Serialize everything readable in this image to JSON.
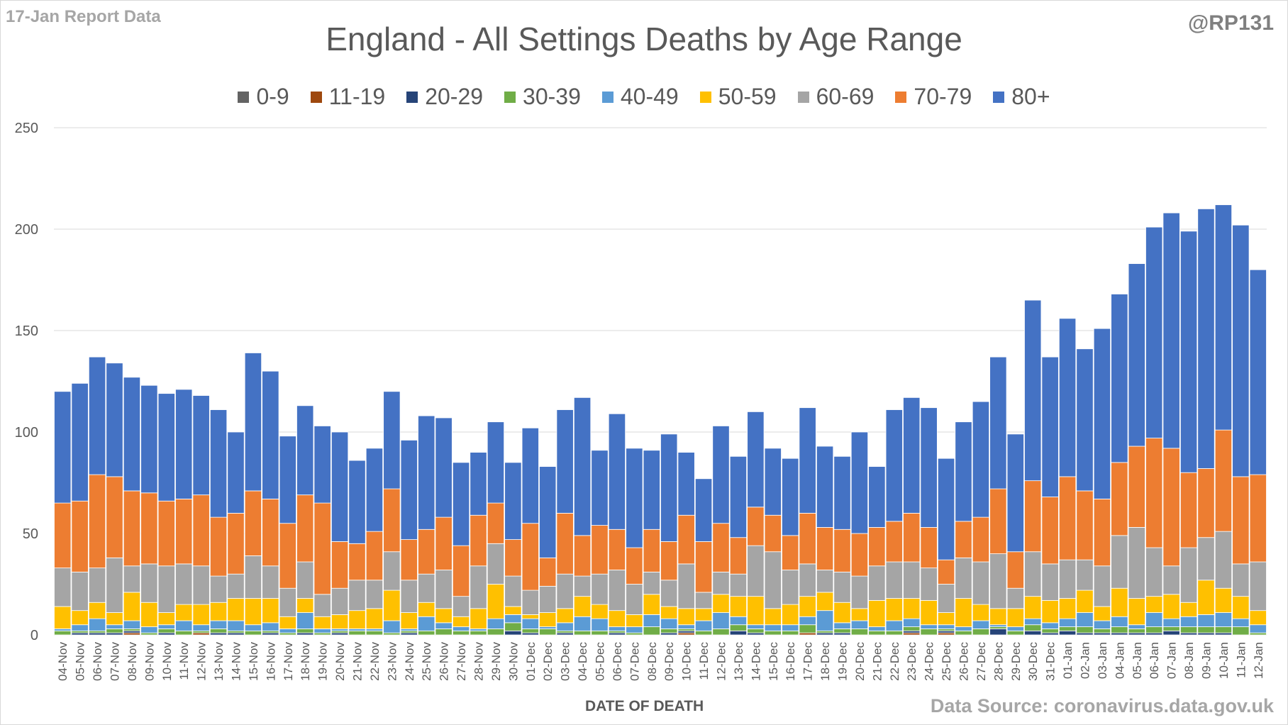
{
  "header": {
    "report_date": "17-Jan Report Data",
    "handle": "@RP131",
    "source": "Data Source: coronavirus.data.gov.uk"
  },
  "chart_data": {
    "type": "bar",
    "stacked": true,
    "title": "England - All Settings Deaths by Age Range",
    "xlabel": "DATE OF DEATH",
    "ylabel": "",
    "ylim": [
      0,
      250
    ],
    "yticks": [
      0,
      50,
      100,
      150,
      200,
      250
    ],
    "grid": true,
    "legend_position": "top",
    "categories": [
      "04-Nov",
      "05-Nov",
      "06-Nov",
      "07-Nov",
      "08-Nov",
      "09-Nov",
      "10-Nov",
      "11-Nov",
      "12-Nov",
      "13-Nov",
      "14-Nov",
      "15-Nov",
      "16-Nov",
      "17-Nov",
      "18-Nov",
      "19-Nov",
      "20-Nov",
      "21-Nov",
      "22-Nov",
      "23-Nov",
      "24-Nov",
      "25-Nov",
      "26-Nov",
      "27-Nov",
      "28-Nov",
      "29-Nov",
      "30-Nov",
      "01-Dec",
      "02-Dec",
      "03-Dec",
      "04-Dec",
      "05-Dec",
      "06-Dec",
      "07-Dec",
      "08-Dec",
      "09-Dec",
      "10-Dec",
      "11-Dec",
      "12-Dec",
      "13-Dec",
      "14-Dec",
      "15-Dec",
      "16-Dec",
      "17-Dec",
      "18-Dec",
      "19-Dec",
      "20-Dec",
      "21-Dec",
      "22-Dec",
      "23-Dec",
      "24-Dec",
      "25-Dec",
      "26-Dec",
      "27-Dec",
      "28-Dec",
      "29-Dec",
      "30-Dec",
      "31-Dec",
      "01-Jan",
      "02-Jan",
      "03-Jan",
      "04-Jan",
      "05-Jan",
      "06-Jan",
      "07-Jan",
      "08-Jan",
      "09-Jan",
      "10-Jan",
      "11-Jan",
      "12-Jan"
    ],
    "series": [
      {
        "name": "0-9",
        "color": "#636363",
        "values": [
          0,
          0,
          0,
          0,
          0,
          0,
          0,
          0,
          0,
          0,
          0,
          0,
          0,
          0,
          0,
          0,
          0,
          0,
          0,
          0,
          0,
          0,
          0,
          0,
          0,
          0,
          0,
          0,
          0,
          0,
          0,
          0,
          0,
          0,
          0,
          0,
          0,
          0,
          0,
          0,
          0,
          0,
          0,
          0,
          0,
          0,
          0,
          0,
          0,
          0,
          0,
          0,
          0,
          0,
          0,
          0,
          0,
          0,
          0,
          0,
          0,
          0,
          0,
          0,
          0,
          0,
          0,
          0,
          0,
          0
        ]
      },
      {
        "name": "11-19",
        "color": "#9e480e",
        "values": [
          0,
          0,
          0,
          0,
          1,
          0,
          0,
          0,
          1,
          0,
          0,
          0,
          0,
          0,
          0,
          0,
          0,
          0,
          0,
          0,
          0,
          0,
          0,
          0,
          0,
          0,
          0,
          0,
          0,
          0,
          0,
          0,
          0,
          0,
          0,
          0,
          1,
          0,
          0,
          0,
          0,
          0,
          0,
          1,
          0,
          0,
          0,
          0,
          0,
          1,
          0,
          1,
          0,
          0,
          0,
          0,
          0,
          0,
          0,
          0,
          0,
          0,
          0,
          0,
          0,
          0,
          0,
          0,
          0,
          0
        ]
      },
      {
        "name": "20-29",
        "color": "#264478",
        "values": [
          0,
          1,
          1,
          1,
          1,
          0,
          1,
          0,
          0,
          1,
          1,
          0,
          1,
          0,
          1,
          0,
          1,
          0,
          0,
          0,
          1,
          0,
          0,
          0,
          0,
          0,
          2,
          1,
          0,
          1,
          0,
          0,
          1,
          0,
          0,
          1,
          1,
          0,
          0,
          2,
          1,
          0,
          0,
          0,
          1,
          1,
          0,
          0,
          0,
          1,
          0,
          1,
          0,
          0,
          3,
          0,
          2,
          1,
          2,
          1,
          1,
          1,
          1,
          1,
          2,
          1,
          1,
          1,
          0,
          0
        ]
      },
      {
        "name": "30-39",
        "color": "#70ad47",
        "values": [
          2,
          1,
          1,
          2,
          1,
          1,
          2,
          2,
          1,
          2,
          1,
          2,
          1,
          1,
          2,
          1,
          1,
          2,
          2,
          1,
          1,
          2,
          3,
          2,
          2,
          3,
          4,
          2,
          3,
          1,
          2,
          2,
          1,
          1,
          4,
          2,
          1,
          2,
          3,
          3,
          2,
          2,
          2,
          4,
          1,
          2,
          3,
          2,
          2,
          2,
          3,
          1,
          2,
          3,
          1,
          2,
          3,
          2,
          2,
          3,
          2,
          3,
          2,
          3,
          2,
          3,
          3,
          3,
          4,
          1
        ]
      },
      {
        "name": "40-49",
        "color": "#5b9bd5",
        "values": [
          1,
          3,
          6,
          2,
          4,
          3,
          2,
          5,
          3,
          4,
          5,
          3,
          4,
          2,
          8,
          2,
          1,
          1,
          1,
          6,
          1,
          7,
          3,
          2,
          1,
          5,
          4,
          5,
          1,
          4,
          7,
          6,
          2,
          3,
          6,
          5,
          2,
          5,
          8,
          4,
          2,
          3,
          3,
          4,
          10,
          3,
          4,
          2,
          5,
          4,
          2,
          2,
          2,
          4,
          1,
          2,
          3,
          3,
          4,
          7,
          4,
          5,
          2,
          7,
          4,
          5,
          6,
          7,
          4,
          4
        ]
      },
      {
        "name": "50-59",
        "color": "#ffc000",
        "values": [
          11,
          7,
          8,
          6,
          14,
          12,
          6,
          8,
          10,
          9,
          11,
          13,
          12,
          6,
          7,
          6,
          7,
          9,
          10,
          15,
          8,
          7,
          7,
          5,
          10,
          17,
          4,
          2,
          7,
          7,
          10,
          7,
          8,
          6,
          10,
          6,
          8,
          6,
          9,
          10,
          14,
          8,
          10,
          10,
          9,
          10,
          6,
          13,
          11,
          10,
          12,
          6,
          14,
          8,
          8,
          9,
          11,
          11,
          10,
          11,
          7,
          14,
          13,
          8,
          12,
          7,
          17,
          12,
          11,
          7
        ]
      },
      {
        "name": "60-69",
        "color": "#a5a5a5",
        "values": [
          19,
          19,
          17,
          27,
          13,
          19,
          23,
          20,
          19,
          13,
          12,
          21,
          16,
          14,
          18,
          11,
          13,
          15,
          14,
          19,
          16,
          14,
          19,
          10,
          21,
          20,
          15,
          12,
          13,
          17,
          10,
          15,
          20,
          15,
          11,
          13,
          22,
          8,
          11,
          11,
          25,
          28,
          17,
          16,
          11,
          15,
          16,
          17,
          18,
          18,
          16,
          14,
          20,
          21,
          27,
          10,
          22,
          18,
          19,
          15,
          20,
          26,
          35,
          24,
          14,
          27,
          21,
          28,
          16,
          24
        ]
      },
      {
        "name": "70-79",
        "color": "#ed7d31",
        "values": [
          32,
          35,
          46,
          40,
          37,
          35,
          32,
          32,
          35,
          29,
          30,
          32,
          33,
          32,
          33,
          45,
          23,
          18,
          24,
          31,
          20,
          22,
          26,
          25,
          25,
          20,
          18,
          33,
          14,
          30,
          20,
          24,
          20,
          18,
          21,
          19,
          24,
          25,
          24,
          18,
          19,
          18,
          17,
          25,
          21,
          21,
          21,
          19,
          20,
          24,
          20,
          12,
          18,
          22,
          32,
          18,
          35,
          33,
          41,
          34,
          33,
          36,
          40,
          54,
          58,
          37,
          34,
          50,
          43,
          43
        ]
      },
      {
        "name": "80+",
        "color": "#4472c4",
        "values": [
          55,
          58,
          58,
          56,
          56,
          53,
          53,
          54,
          49,
          53,
          40,
          68,
          63,
          43,
          44,
          38,
          54,
          41,
          41,
          48,
          49,
          56,
          49,
          41,
          31,
          40,
          38,
          47,
          45,
          51,
          68,
          37,
          57,
          49,
          39,
          53,
          31,
          31,
          48,
          40,
          47,
          33,
          38,
          52,
          40,
          36,
          50,
          30,
          55,
          57,
          59,
          50,
          49,
          57,
          65,
          58,
          89,
          69,
          78,
          70,
          84,
          83,
          90,
          104,
          116,
          119,
          128,
          111,
          124,
          101
        ]
      }
    ]
  }
}
